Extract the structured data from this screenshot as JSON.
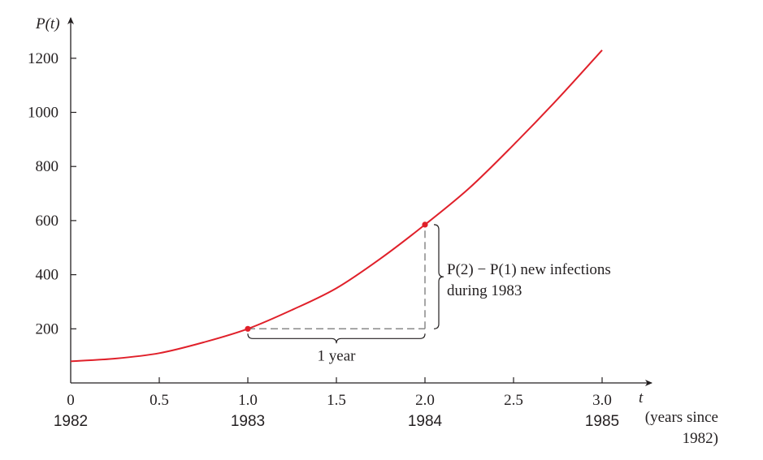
{
  "chart_data": {
    "type": "line",
    "ylabel": "P(t)",
    "xlabel": "t",
    "xlabel_note_line1": "(years since",
    "xlabel_note_line2": "1982)",
    "xlim": [
      0,
      3.2
    ],
    "ylim": [
      0,
      1300
    ],
    "x_ticks": [
      {
        "value": 0,
        "label": "0"
      },
      {
        "value": 0.5,
        "label": "0.5"
      },
      {
        "value": 1.0,
        "label": "1.0"
      },
      {
        "value": 1.5,
        "label": "1.5"
      },
      {
        "value": 2.0,
        "label": "2.0"
      },
      {
        "value": 2.5,
        "label": "2.5"
      },
      {
        "value": 3.0,
        "label": "3.0"
      }
    ],
    "x_year_labels": [
      {
        "value": 0,
        "label": "1982"
      },
      {
        "value": 1.0,
        "label": "1983"
      },
      {
        "value": 2.0,
        "label": "1984"
      },
      {
        "value": 3.0,
        "label": "1985"
      }
    ],
    "y_ticks": [
      {
        "value": 200,
        "label": "200"
      },
      {
        "value": 400,
        "label": "400"
      },
      {
        "value": 600,
        "label": "600"
      },
      {
        "value": 800,
        "label": "800"
      },
      {
        "value": 1000,
        "label": "1000"
      },
      {
        "value": 1200,
        "label": "1200"
      }
    ],
    "series": [
      {
        "x": [
          0,
          0.25,
          0.5,
          0.75,
          1.0,
          1.25,
          1.5,
          1.75,
          2.0,
          2.25,
          2.5,
          2.75,
          3.0
        ],
        "y": [
          80,
          90,
          110,
          150,
          200,
          270,
          350,
          460,
          585,
          720,
          880,
          1050,
          1230
        ]
      }
    ],
    "highlight_points": [
      {
        "x": 1.0,
        "y": 200
      },
      {
        "x": 2.0,
        "y": 585
      }
    ],
    "annotations": {
      "interval_label": "1 year",
      "change_part1": "P(2) − P(1) new infections",
      "change_part2": "during 1983"
    },
    "colors": {
      "curve": "#e0202a",
      "axes": "#231f20",
      "guide": "#8a8a8a"
    }
  }
}
